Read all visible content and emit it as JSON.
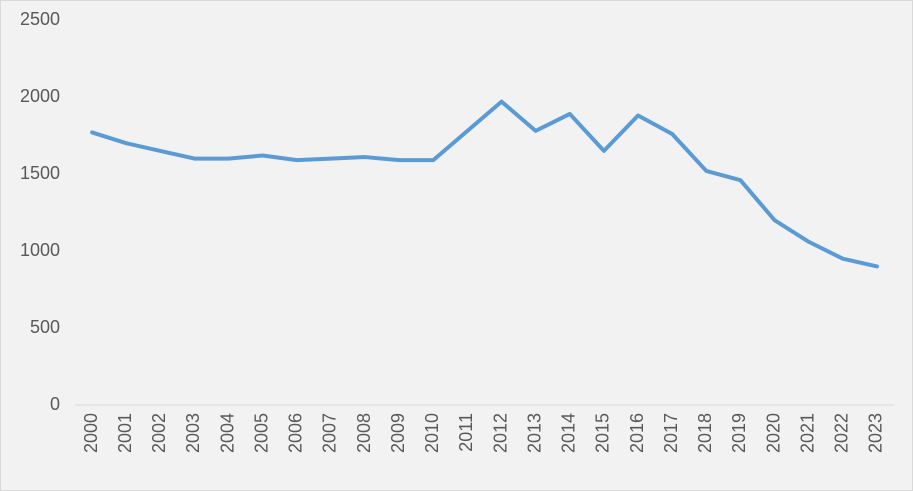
{
  "chart_data": {
    "type": "line",
    "categories": [
      "2000",
      "2001",
      "2002",
      "2003",
      "2004",
      "2005",
      "2006",
      "2007",
      "2008",
      "2009",
      "2010",
      "2011",
      "2012",
      "2013",
      "2014",
      "2015",
      "2016",
      "2017",
      "2018",
      "2019",
      "2020",
      "2021",
      "2022",
      "2023"
    ],
    "values": [
      1770,
      1700,
      1650,
      1600,
      1600,
      1620,
      1590,
      1600,
      1610,
      1590,
      1590,
      1780,
      1970,
      1780,
      1890,
      1650,
      1880,
      1760,
      1520,
      1460,
      1200,
      1060,
      950,
      900
    ],
    "color": "#5b9bd5",
    "ylim": [
      0,
      2500
    ],
    "yticks": [
      0,
      500,
      1000,
      1500,
      2000,
      2500
    ],
    "grid": false
  }
}
